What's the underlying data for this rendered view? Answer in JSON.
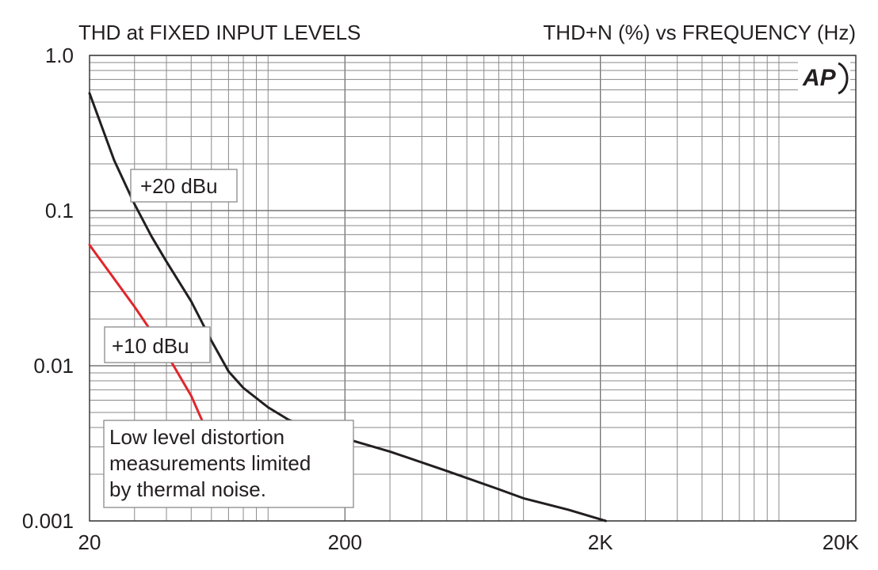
{
  "chart_data": {
    "type": "line",
    "title": "THD at FIXED INPUT LEVELS",
    "subtitle": "THD+N (%) vs FREQUENCY (Hz)",
    "xlabel": "",
    "ylabel": "",
    "x_scale": "log",
    "y_scale": "log",
    "xlim": [
      20,
      20000
    ],
    "ylim": [
      0.001,
      1.0
    ],
    "x_ticks": [
      {
        "value": 20,
        "label": "20"
      },
      {
        "value": 200,
        "label": "200"
      },
      {
        "value": 2000,
        "label": "2K"
      },
      {
        "value": 20000,
        "label": "20K"
      }
    ],
    "y_ticks": [
      {
        "value": 1.0,
        "label": "1.0"
      },
      {
        "value": 0.1,
        "label": "0.1"
      },
      {
        "value": 0.01,
        "label": "0.01"
      },
      {
        "value": 0.001,
        "label": "0.001"
      }
    ],
    "grid": true,
    "colors": {
      "plus20": "#231f20",
      "plus10": "#e0262c",
      "grid": "#8a8a8a"
    },
    "series": [
      {
        "name": "+20 dBu",
        "color": "#231f20",
        "x": [
          20,
          25,
          30,
          35,
          40,
          50,
          60,
          70,
          80,
          100,
          120,
          150,
          200,
          300,
          500,
          800,
          1000,
          1500,
          2100
        ],
        "y": [
          0.57,
          0.21,
          0.11,
          0.068,
          0.047,
          0.026,
          0.0145,
          0.0092,
          0.0072,
          0.0054,
          0.0045,
          0.0039,
          0.0034,
          0.0028,
          0.0021,
          0.0016,
          0.0014,
          0.00118,
          0.001
        ]
      },
      {
        "name": "+10 dBu",
        "color": "#e0262c",
        "x": [
          20,
          30,
          40,
          50,
          56
        ],
        "y": [
          0.06,
          0.024,
          0.012,
          0.0064,
          0.0042
        ]
      }
    ],
    "annotations": [
      {
        "text": "+20 dBu",
        "series": "+20 dBu"
      },
      {
        "text": "+10 dBu",
        "series": "+10 dBu"
      },
      {
        "lines": [
          "Low level distortion",
          "measurements limited",
          "by thermal noise."
        ]
      }
    ],
    "logo": "AP"
  }
}
